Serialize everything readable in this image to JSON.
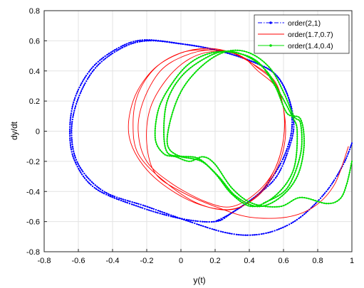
{
  "chart_data": {
    "type": "line",
    "title": "",
    "xlabel": "y(t)",
    "ylabel": "dy/dt",
    "xlim": [
      -0.8,
      1.0
    ],
    "ylim": [
      -0.8,
      0.8
    ],
    "xticks": [
      "-0.8",
      "-0.6",
      "-0.4",
      "-0.2",
      "0",
      "0.2",
      "0.4",
      "0.6",
      "0.8",
      "1"
    ],
    "yticks": [
      "-0.8",
      "-0.6",
      "-0.4",
      "-0.2",
      "0",
      "0.2",
      "0.4",
      "0.6",
      "0.8"
    ],
    "grid": true,
    "legend_position": "top-right",
    "series": [
      {
        "name": "order(2,1)",
        "color": "#0000ff",
        "line_style": "dash-dot",
        "marker": "dot",
        "points": [
          [
            1.0,
            -0.08
          ],
          [
            0.95,
            -0.22
          ],
          [
            0.85,
            -0.4
          ],
          [
            0.7,
            -0.57
          ],
          [
            0.55,
            -0.66
          ],
          [
            0.4,
            -0.69
          ],
          [
            0.25,
            -0.67
          ],
          [
            0.05,
            -0.6
          ],
          [
            -0.2,
            -0.5
          ],
          [
            -0.45,
            -0.4
          ],
          [
            -0.6,
            -0.22
          ],
          [
            -0.64,
            0.0
          ],
          [
            -0.6,
            0.22
          ],
          [
            -0.5,
            0.42
          ],
          [
            -0.35,
            0.55
          ],
          [
            -0.2,
            0.6
          ],
          [
            0.0,
            0.58
          ],
          [
            0.2,
            0.54
          ],
          [
            0.4,
            0.47
          ],
          [
            0.55,
            0.38
          ],
          [
            0.63,
            0.22
          ],
          [
            0.65,
            0.04
          ],
          [
            0.62,
            -0.12
          ],
          [
            0.55,
            -0.28
          ],
          [
            0.45,
            -0.42
          ],
          [
            0.3,
            -0.54
          ],
          [
            0.2,
            -0.6
          ],
          [
            0.0,
            -0.58
          ],
          [
            -0.25,
            -0.5
          ],
          [
            -0.5,
            -0.38
          ],
          [
            -0.62,
            -0.2
          ],
          [
            -0.65,
            0.0
          ],
          [
            -0.62,
            0.22
          ],
          [
            -0.52,
            0.42
          ],
          [
            -0.37,
            0.55
          ],
          [
            -0.22,
            0.605
          ],
          [
            0.0,
            0.58
          ],
          [
            0.2,
            0.54
          ],
          [
            0.4,
            0.47
          ],
          [
            0.55,
            0.38
          ],
          [
            0.63,
            0.22
          ],
          [
            0.66,
            0.04
          ],
          [
            0.63,
            -0.12
          ],
          [
            0.56,
            -0.3
          ],
          [
            0.45,
            -0.42
          ],
          [
            0.3,
            -0.54
          ],
          [
            0.2,
            -0.6
          ]
        ]
      },
      {
        "name": "order(1.7,0.7)",
        "color": "#ff0000",
        "line_style": "solid",
        "marker": "none",
        "points": [
          [
            0.98,
            -0.1
          ],
          [
            0.9,
            -0.35
          ],
          [
            0.78,
            -0.5
          ],
          [
            0.62,
            -0.57
          ],
          [
            0.4,
            -0.57
          ],
          [
            0.2,
            -0.5
          ],
          [
            0.0,
            -0.4
          ],
          [
            -0.15,
            -0.28
          ],
          [
            -0.2,
            -0.08
          ],
          [
            -0.18,
            0.15
          ],
          [
            -0.08,
            0.35
          ],
          [
            0.05,
            0.48
          ],
          [
            0.2,
            0.53
          ],
          [
            0.35,
            0.5
          ],
          [
            0.45,
            0.4
          ],
          [
            0.55,
            0.3
          ],
          [
            0.6,
            0.15
          ],
          [
            0.6,
            -0.05
          ],
          [
            0.55,
            -0.25
          ],
          [
            0.45,
            -0.4
          ],
          [
            0.3,
            -0.5
          ],
          [
            0.15,
            -0.47
          ],
          [
            -0.05,
            -0.35
          ],
          [
            -0.2,
            -0.2
          ],
          [
            -0.25,
            0.0
          ],
          [
            -0.22,
            0.2
          ],
          [
            -0.12,
            0.4
          ],
          [
            0.02,
            0.5
          ],
          [
            0.18,
            0.54
          ],
          [
            0.33,
            0.51
          ],
          [
            0.45,
            0.42
          ],
          [
            0.55,
            0.32
          ],
          [
            0.6,
            0.15
          ],
          [
            0.6,
            -0.05
          ],
          [
            0.55,
            -0.25
          ],
          [
            0.45,
            -0.42
          ],
          [
            0.3,
            -0.52
          ],
          [
            0.1,
            -0.48
          ],
          [
            -0.1,
            -0.33
          ],
          [
            -0.25,
            -0.15
          ],
          [
            -0.28,
            0.05
          ],
          [
            -0.25,
            0.25
          ],
          [
            -0.15,
            0.42
          ],
          [
            0.0,
            0.52
          ],
          [
            0.15,
            0.54
          ],
          [
            0.3,
            0.52
          ],
          [
            0.43,
            0.44
          ],
          [
            0.55,
            0.33
          ],
          [
            0.6,
            0.15
          ],
          [
            0.61,
            -0.05
          ],
          [
            0.56,
            -0.25
          ],
          [
            0.45,
            -0.43
          ],
          [
            0.28,
            -0.52
          ],
          [
            0.05,
            -0.46
          ],
          [
            -0.18,
            -0.28
          ],
          [
            -0.3,
            -0.05
          ],
          [
            -0.28,
            0.2
          ],
          [
            -0.17,
            0.4
          ],
          [
            -0.02,
            0.51
          ],
          [
            0.15,
            0.55
          ],
          [
            0.3,
            0.52
          ],
          [
            0.43,
            0.44
          ]
        ]
      },
      {
        "name": "order(1.4,0.4)",
        "color": "#00dd00",
        "line_style": "solid",
        "marker": "dot",
        "points": [
          [
            1.0,
            -0.2
          ],
          [
            0.97,
            -0.35
          ],
          [
            0.93,
            -0.45
          ],
          [
            0.85,
            -0.48
          ],
          [
            0.7,
            -0.44
          ],
          [
            0.58,
            -0.5
          ],
          [
            0.42,
            -0.48
          ],
          [
            0.3,
            -0.38
          ],
          [
            0.2,
            -0.22
          ],
          [
            0.13,
            -0.17
          ],
          [
            0.05,
            -0.2
          ],
          [
            -0.03,
            -0.17
          ],
          [
            -0.1,
            -0.15
          ],
          [
            -0.15,
            -0.05
          ],
          [
            -0.13,
            0.15
          ],
          [
            -0.05,
            0.32
          ],
          [
            0.05,
            0.45
          ],
          [
            0.18,
            0.52
          ],
          [
            0.32,
            0.52
          ],
          [
            0.45,
            0.46
          ],
          [
            0.55,
            0.3
          ],
          [
            0.62,
            0.12
          ],
          [
            0.7,
            0.08
          ],
          [
            0.72,
            -0.1
          ],
          [
            0.68,
            -0.3
          ],
          [
            0.58,
            -0.44
          ],
          [
            0.45,
            -0.5
          ],
          [
            0.32,
            -0.43
          ],
          [
            0.22,
            -0.3
          ],
          [
            0.12,
            -0.2
          ],
          [
            0.0,
            -0.17
          ],
          [
            -0.08,
            -0.14
          ],
          [
            -0.1,
            0.0
          ],
          [
            -0.08,
            0.2
          ],
          [
            0.0,
            0.36
          ],
          [
            0.12,
            0.47
          ],
          [
            0.25,
            0.53
          ],
          [
            0.38,
            0.5
          ],
          [
            0.5,
            0.4
          ],
          [
            0.58,
            0.25
          ],
          [
            0.65,
            0.1
          ],
          [
            0.68,
            0.0
          ],
          [
            0.66,
            -0.25
          ],
          [
            0.56,
            -0.42
          ],
          [
            0.42,
            -0.5
          ],
          [
            0.3,
            -0.42
          ],
          [
            0.2,
            -0.28
          ],
          [
            0.1,
            -0.18
          ],
          [
            -0.02,
            -0.16
          ],
          [
            -0.08,
            -0.08
          ],
          [
            -0.05,
            0.12
          ],
          [
            0.02,
            0.3
          ],
          [
            0.14,
            0.45
          ],
          [
            0.27,
            0.53
          ],
          [
            0.4,
            0.52
          ],
          [
            0.52,
            0.42
          ],
          [
            0.6,
            0.26
          ],
          [
            0.66,
            0.1
          ],
          [
            0.7,
            0.05
          ],
          [
            0.7,
            -0.15
          ],
          [
            0.62,
            -0.38
          ],
          [
            0.48,
            -0.48
          ]
        ]
      }
    ]
  }
}
